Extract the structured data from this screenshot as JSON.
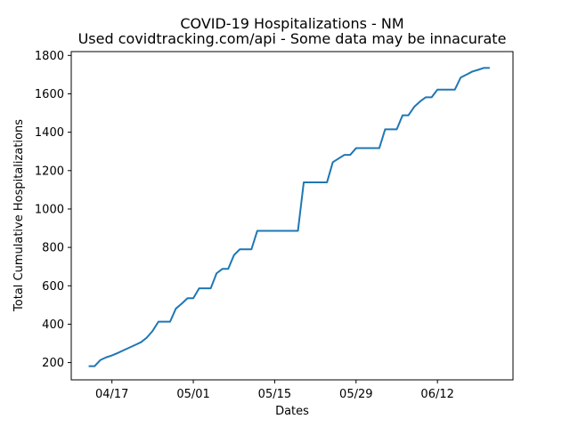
{
  "chart_data": {
    "type": "line",
    "title": "COVID-19 Hospitalizations - NM",
    "subtitle": "Used covidtracking.com/api - Some data may be innacurate",
    "xlabel": "Dates",
    "ylabel": "Total Cumulative Hospitalizations",
    "grid": false,
    "xlim": [
      "2020-04-10",
      "2020-06-25"
    ],
    "ylim": [
      110,
      1820
    ],
    "x_ticks": [
      {
        "date": "2020-04-17",
        "label": "04/17"
      },
      {
        "date": "2020-05-01",
        "label": "05/01"
      },
      {
        "date": "2020-05-15",
        "label": "05/15"
      },
      {
        "date": "2020-05-29",
        "label": "05/29"
      },
      {
        "date": "2020-06-12",
        "label": "06/12"
      }
    ],
    "y_ticks": [
      200,
      400,
      600,
      800,
      1000,
      1200,
      1400,
      1600,
      1800
    ],
    "series": [
      {
        "color": "#1f77b4",
        "x": [
          "2020-04-13",
          "2020-04-14",
          "2020-04-15",
          "2020-04-16",
          "2020-04-17",
          "2020-04-18",
          "2020-04-19",
          "2020-04-20",
          "2020-04-21",
          "2020-04-22",
          "2020-04-23",
          "2020-04-24",
          "2020-04-25",
          "2020-04-26",
          "2020-04-27",
          "2020-04-28",
          "2020-04-29",
          "2020-04-30",
          "2020-05-01",
          "2020-05-02",
          "2020-05-03",
          "2020-05-04",
          "2020-05-05",
          "2020-05-06",
          "2020-05-07",
          "2020-05-08",
          "2020-05-09",
          "2020-05-10",
          "2020-05-11",
          "2020-05-12",
          "2020-05-13",
          "2020-05-14",
          "2020-05-15",
          "2020-05-16",
          "2020-05-17",
          "2020-05-18",
          "2020-05-19",
          "2020-05-20",
          "2020-05-21",
          "2020-05-22",
          "2020-05-23",
          "2020-05-24",
          "2020-05-25",
          "2020-05-26",
          "2020-05-27",
          "2020-05-28",
          "2020-05-29",
          "2020-05-30",
          "2020-05-31",
          "2020-06-01",
          "2020-06-02",
          "2020-06-03",
          "2020-06-04",
          "2020-06-05",
          "2020-06-06",
          "2020-06-07",
          "2020-06-08",
          "2020-06-09",
          "2020-06-10",
          "2020-06-11",
          "2020-06-12",
          "2020-06-13",
          "2020-06-14",
          "2020-06-15",
          "2020-06-16",
          "2020-06-17",
          "2020-06-18",
          "2020-06-19",
          "2020-06-20",
          "2020-06-21"
        ],
        "y": [
          181,
          181,
          213,
          227,
          237,
          250,
          264,
          278,
          292,
          306,
          330,
          365,
          413,
          413,
          413,
          481,
          507,
          535,
          535,
          587,
          587,
          587,
          665,
          688,
          688,
          760,
          790,
          790,
          790,
          886,
          886,
          886,
          886,
          886,
          886,
          886,
          886,
          1139,
          1139,
          1139,
          1139,
          1139,
          1244,
          1263,
          1282,
          1282,
          1317,
          1317,
          1317,
          1317,
          1317,
          1415,
          1415,
          1415,
          1488,
          1488,
          1532,
          1560,
          1582,
          1582,
          1622,
          1622,
          1622,
          1622,
          1685,
          1700,
          1716,
          1725,
          1735,
          1735
        ]
      }
    ]
  }
}
